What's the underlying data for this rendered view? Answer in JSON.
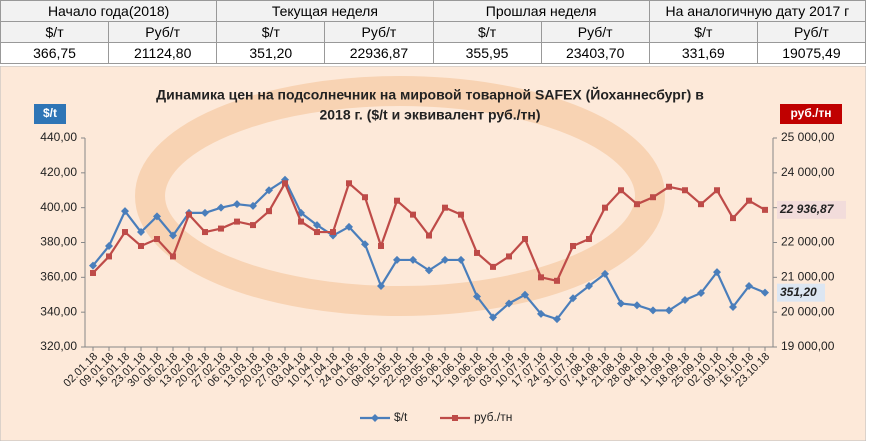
{
  "table": {
    "headers": [
      "Начало года(2018)",
      "Текущая неделя",
      "Прошлая неделя",
      "На аналогичную дату 2017 г"
    ],
    "subheaders": [
      "$/т",
      "Руб/т",
      "$/т",
      "Руб/т",
      "$/т",
      "Руб/т",
      "$/т",
      "Руб/т"
    ],
    "values": [
      "366,75",
      "21124,80",
      "351,20",
      "22936,87",
      "355,95",
      "23403,70",
      "331,69",
      "19075,49"
    ]
  },
  "chart_data": {
    "type": "line",
    "title": [
      "Динамика цен на подсолнечник на мировой товарной SAFEX (Йоханнесбург)  в",
      "2018 г. ($/t и эквивалент руб./тн)"
    ],
    "ylabel": "$/t",
    "y2label": "руб./тн",
    "categories": [
      "02.01.18",
      "09.01.18",
      "16.01.18",
      "23.01.18",
      "30.01.18",
      "06.02.18",
      "13.02.18",
      "20.02.18",
      "27.02.18",
      "06.03.18",
      "13.03.18",
      "20.03.18",
      "27.03.18",
      "03.04.18",
      "10.04.18",
      "17.04.18",
      "24.04.18",
      "01.05.18",
      "08.05.18",
      "15.05.18",
      "22.05.18",
      "29.05.18",
      "05.06.18",
      "12.06.18",
      "19.06.18",
      "26.06.18",
      "03.07.18",
      "10.07.18",
      "17.07.18",
      "24.07.18",
      "31.07.18",
      "07.08.18",
      "14.08.18",
      "21.08.18",
      "28.08.18",
      "04.09.18",
      "11.09.18",
      "18.09.18",
      "25.09.18",
      "02.10.18",
      "09.10.18",
      "16.10.18",
      "23.10.18"
    ],
    "series": [
      {
        "name": "$/t",
        "color": "#4a7ebb",
        "marker": "diamond",
        "label_bg": "#dce6f2",
        "values": [
          366.75,
          378,
          398,
          386,
          395,
          384,
          397,
          397,
          400,
          402,
          401,
          410,
          416,
          397,
          390,
          384,
          389,
          379,
          355,
          370,
          370,
          364,
          370,
          370,
          349,
          337,
          345,
          350,
          339,
          336,
          348,
          355,
          362,
          345,
          344,
          341,
          341,
          347,
          351,
          363,
          343,
          355,
          351.2
        ],
        "value_labels": [
          null,
          null,
          null,
          null,
          null,
          null,
          null,
          null,
          null,
          null,
          null,
          null,
          null,
          null,
          null,
          null,
          null,
          null,
          null,
          null,
          null,
          null,
          null,
          null,
          null,
          null,
          null,
          null,
          null,
          null,
          null,
          null,
          null,
          null,
          null,
          null,
          null,
          null,
          null,
          null,
          null,
          null,
          "351,20"
        ]
      },
      {
        "name": "руб./тн",
        "color": "#be4b48",
        "marker": "square",
        "axis": "y2",
        "label_bg": "#f2dcdb",
        "values": [
          21124.8,
          21600,
          22300,
          21900,
          22100,
          21600,
          22800,
          22300,
          22400,
          22600,
          22500,
          22900,
          23700,
          22600,
          22300,
          22300,
          23700,
          23300,
          21900,
          23200,
          22800,
          22200,
          23000,
          22800,
          21700,
          21300,
          21600,
          22100,
          21000,
          20900,
          21900,
          22100,
          23000,
          23500,
          23100,
          23300,
          23600,
          23500,
          23100,
          23500,
          22700,
          23200,
          22936.87
        ],
        "value_labels": [
          null,
          null,
          null,
          null,
          null,
          null,
          null,
          null,
          null,
          null,
          null,
          null,
          null,
          null,
          null,
          null,
          null,
          null,
          null,
          null,
          null,
          null,
          null,
          null,
          null,
          null,
          null,
          null,
          null,
          null,
          null,
          null,
          null,
          null,
          null,
          null,
          null,
          null,
          null,
          null,
          null,
          null,
          "22 936,87"
        ]
      }
    ],
    "ylim": [
      320,
      440
    ],
    "yticks": [
      {
        "value": 320,
        "label": "320,00"
      },
      {
        "value": 340,
        "label": "340,00"
      },
      {
        "value": 360,
        "label": "360,00"
      },
      {
        "value": 380,
        "label": "380,00"
      },
      {
        "value": 400,
        "label": "400,00"
      },
      {
        "value": 420,
        "label": "420,00"
      },
      {
        "value": 440,
        "label": "440,00"
      }
    ],
    "y2lim": [
      19000,
      25000
    ],
    "y2ticks": [
      {
        "value": 19000,
        "label": "19 000,00"
      },
      {
        "value": 20000,
        "label": "20 000,00"
      },
      {
        "value": 21000,
        "label": "21 000,00"
      },
      {
        "value": 22000,
        "label": "22 000,00"
      },
      {
        "value": 23000,
        "label": "23 000,00"
      },
      {
        "value": 24000,
        "label": "24 000,00"
      },
      {
        "value": 25000,
        "label": "25 000,00"
      }
    ],
    "grid": false,
    "legend": "bottom"
  }
}
